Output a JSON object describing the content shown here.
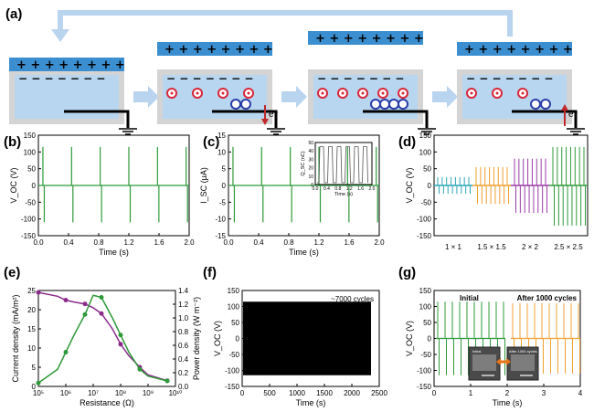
{
  "panel_labels": {
    "a": "(a)",
    "b": "(b)",
    "c": "(c)",
    "d": "(d)",
    "e": "(e)",
    "f": "(f)",
    "g": "(g)"
  },
  "schematic": {
    "plus_signs": "+ + + + + + + +",
    "minus_signs": "− − − − − − −",
    "electron_label": "e⁻",
    "colors": {
      "top_plate": "#3b8fd0",
      "film": "#b8d6ef",
      "frame": "#d4d4d4",
      "arrow": "#b9d4ee",
      "ion_red": "#d8283a",
      "ion_blue": "#2b3ea8",
      "electron_arrow": "#c0282a"
    }
  },
  "chart_data": [
    {
      "id": "b",
      "type": "line",
      "ylabel": "V_OC (V)",
      "xlabel": "Time (s)",
      "xlim": [
        0,
        2.0
      ],
      "ylim": [
        -150,
        150
      ],
      "xticks": [
        0.0,
        0.4,
        0.8,
        1.2,
        1.6,
        2.0
      ],
      "yticks": [
        -150,
        -100,
        -50,
        0,
        50,
        100,
        150
      ],
      "tick_labels_x": [
        "0.0",
        "0.4",
        "0.8",
        "1.2",
        "1.6",
        "2.0"
      ],
      "tick_labels_y": [
        "-150",
        "-100",
        "-50",
        "0",
        "50",
        "100",
        "150"
      ],
      "spike_times": [
        0.06,
        0.44,
        0.82,
        1.2,
        1.58,
        1.96
      ],
      "pos_peak": 115,
      "neg_peak": -110,
      "color": "#2f9a3a"
    },
    {
      "id": "c",
      "type": "line",
      "ylabel": "I_SC (μA)",
      "xlabel": "Time (s)",
      "xlim": [
        0,
        2.0
      ],
      "ylim": [
        -15,
        15
      ],
      "xticks": [
        0.0,
        0.4,
        0.8,
        1.2,
        1.6,
        2.0
      ],
      "yticks": [
        -15,
        -10,
        -5,
        0,
        5,
        10,
        15
      ],
      "tick_labels_x": [
        "0.0",
        "0.4",
        "0.8",
        "1.2",
        "1.6",
        "2.0"
      ],
      "tick_labels_y": [
        "-15",
        "-10",
        "-5",
        "0",
        "5",
        "10",
        "15"
      ],
      "spike_times": [
        0.06,
        0.44,
        0.82,
        1.2,
        1.58,
        1.96
      ],
      "pos_peak": 11.5,
      "neg_peak": -11,
      "color": "#2f9a3a",
      "inset": {
        "ylabel": "Q_SC (nC)",
        "xlabel": "Time (s)",
        "tick_labels_x": [
          "0.0",
          "0.4",
          "0.8",
          "1.2",
          "1.6",
          "2.0"
        ],
        "tick_labels_y": [
          "0",
          "10",
          "20",
          "30",
          "40",
          "50"
        ],
        "pulses": 6,
        "level": 45
      }
    },
    {
      "id": "d",
      "type": "line",
      "ylabel": "V_OC (V)",
      "xlabel": "",
      "ylim": [
        -150,
        150
      ],
      "yticks": [
        -150,
        -100,
        -50,
        0,
        50,
        100,
        150
      ],
      "tick_labels_y": [
        "-150",
        "-100",
        "-50",
        "0",
        "50",
        "100",
        "150"
      ],
      "categories": [
        "1 × 1",
        "1.5 × 1.5",
        "2 × 2",
        "2.5 × 2.5"
      ],
      "series": [
        {
          "color": "#2fa6b8",
          "pos": 25,
          "neg": -25,
          "count": 8
        },
        {
          "color": "#f0a030",
          "pos": 55,
          "neg": -55,
          "count": 8
        },
        {
          "color": "#9b3da8",
          "pos": 80,
          "neg": -82,
          "count": 8
        },
        {
          "color": "#2f9a3a",
          "pos": 115,
          "neg": -120,
          "count": 8
        }
      ]
    },
    {
      "id": "e",
      "type": "line",
      "xlabel": "Resistance (Ω)",
      "ylabel": "Current density (mA/m²)",
      "ylabel_right": "Power density (W m⁻²)",
      "xlog": true,
      "xlim_exp": [
        5,
        10
      ],
      "tick_labels_x": [
        "10⁵",
        "10⁶",
        "10⁷",
        "10⁸",
        "10⁹",
        "10¹⁰"
      ],
      "ylim": [
        0,
        25
      ],
      "yticks": [
        0,
        5,
        10,
        15,
        20,
        25
      ],
      "tick_labels_y": [
        "0",
        "5",
        "10",
        "15",
        "20",
        "25"
      ],
      "ylim_right": [
        0,
        1.4
      ],
      "tick_labels_y_right": [
        "0.0",
        "0.2",
        "0.4",
        "0.6",
        "0.8",
        "1.0",
        "1.2",
        "1.4"
      ],
      "series": [
        {
          "color": "#8a2b8a",
          "x_exp": [
            5,
            5.7,
            6,
            6.3,
            6.7,
            7,
            7.3,
            7.7,
            8,
            8.3,
            8.7,
            9,
            9.7
          ],
          "values": [
            24.5,
            23.5,
            22.5,
            22,
            21.5,
            20.5,
            19,
            15,
            11,
            8,
            5,
            3,
            1.5
          ]
        },
        {
          "color": "#2f9a3a",
          "x_exp": [
            5,
            5.7,
            6,
            6.3,
            6.7,
            7,
            7.3,
            7.7,
            8,
            8.3,
            8.7,
            9,
            9.7
          ],
          "values": [
            0.05,
            0.25,
            0.5,
            0.75,
            1.05,
            1.33,
            1.3,
            1.0,
            0.75,
            0.5,
            0.25,
            0.15,
            0.08
          ]
        }
      ]
    },
    {
      "id": "f",
      "type": "area",
      "ylabel": "V_OC (V)",
      "xlabel": "Time (s)",
      "xlim": [
        0,
        2500
      ],
      "ylim": [
        -150,
        150
      ],
      "tick_labels_x": [
        "0",
        "500",
        "1000",
        "1500",
        "2000",
        "2500"
      ],
      "tick_labels_y": [
        "-150",
        "-100",
        "-50",
        "0",
        "50",
        "100",
        "150"
      ],
      "annotation": "~7000 cycles",
      "span_end": 2350,
      "pos": 115,
      "neg": -115,
      "color": "#000000"
    },
    {
      "id": "g",
      "type": "line",
      "ylabel": "V_OC (V)",
      "xlabel": "Time (s)",
      "xlim": [
        0,
        4
      ],
      "ylim": [
        -150,
        150
      ],
      "tick_labels_x": [
        "0",
        "1",
        "2",
        "3",
        "4"
      ],
      "tick_labels_y": [
        "-150",
        "-100",
        "-50",
        "0",
        "50",
        "100",
        "150"
      ],
      "series": [
        {
          "name": "Initial",
          "color": "#2f9a3a",
          "start": 0.1,
          "end": 1.9,
          "count": 10,
          "pos": 115,
          "neg": -115
        },
        {
          "name": "After 1000 cycles",
          "color": "#f0a030",
          "start": 2.15,
          "end": 3.95,
          "count": 10,
          "pos": 110,
          "neg": -110
        }
      ],
      "inset_labels": [
        "Initial",
        "After 1000 cycles"
      ]
    }
  ]
}
